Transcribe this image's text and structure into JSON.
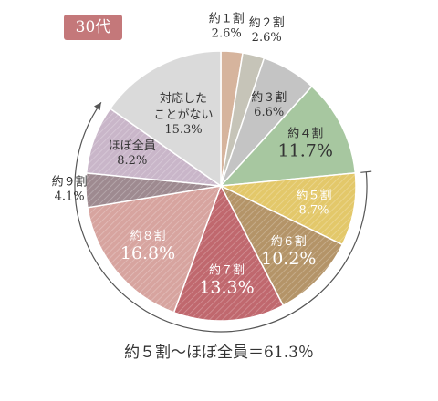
{
  "badge": "30代",
  "summary": "約５割〜ほぼ全員＝61.3％",
  "chart_data": {
    "type": "pie",
    "title": "",
    "unit": "%",
    "slices": [
      {
        "label": "約１割",
        "value": 2.6,
        "display": "2.6%",
        "color": "#d6b49d",
        "text_color": "#333333",
        "hatch": false,
        "big": false
      },
      {
        "label": "約２割",
        "value": 2.6,
        "display": "2.6%",
        "color": "#c6c4b8",
        "text_color": "#333333",
        "hatch": false,
        "big": false
      },
      {
        "label": "約３割",
        "value": 6.6,
        "display": "6.6%",
        "color": "#c4c4c4",
        "text_color": "#333333",
        "hatch": false,
        "big": false
      },
      {
        "label": "約４割",
        "value": 11.7,
        "display": "11.7%",
        "color": "#a7c7a0",
        "text_color": "#333333",
        "hatch": false,
        "big": true
      },
      {
        "label": "約５割",
        "value": 8.7,
        "display": "8.7%",
        "color": "#e3c86a",
        "text_color": "#ffffff",
        "hatch": true,
        "big": false
      },
      {
        "label": "約６割",
        "value": 10.2,
        "display": "10.2%",
        "color": "#b49468",
        "text_color": "#ffffff",
        "hatch": true,
        "big": true
      },
      {
        "label": "約７割",
        "value": 13.3,
        "display": "13.3%",
        "color": "#c0686e",
        "text_color": "#ffffff",
        "hatch": true,
        "big": true
      },
      {
        "label": "約８割",
        "value": 16.8,
        "display": "16.8%",
        "color": "#d7a49f",
        "text_color": "#ffffff",
        "hatch": true,
        "big": true
      },
      {
        "label": "約９割",
        "value": 4.1,
        "display": "4.1%",
        "color": "#9e8a90",
        "text_color": "#ffffff",
        "hatch": true,
        "big": false
      },
      {
        "label": "ほぼ全員",
        "value": 8.2,
        "display": "8.2%",
        "color": "#c9b6c9",
        "text_color": "#333333",
        "hatch": true,
        "big": false
      },
      {
        "label": "対応した\nことがない",
        "value": 15.3,
        "display": "15.3%",
        "color": "#dadada",
        "text_color": "#333333",
        "hatch": false,
        "big": false
      }
    ]
  }
}
